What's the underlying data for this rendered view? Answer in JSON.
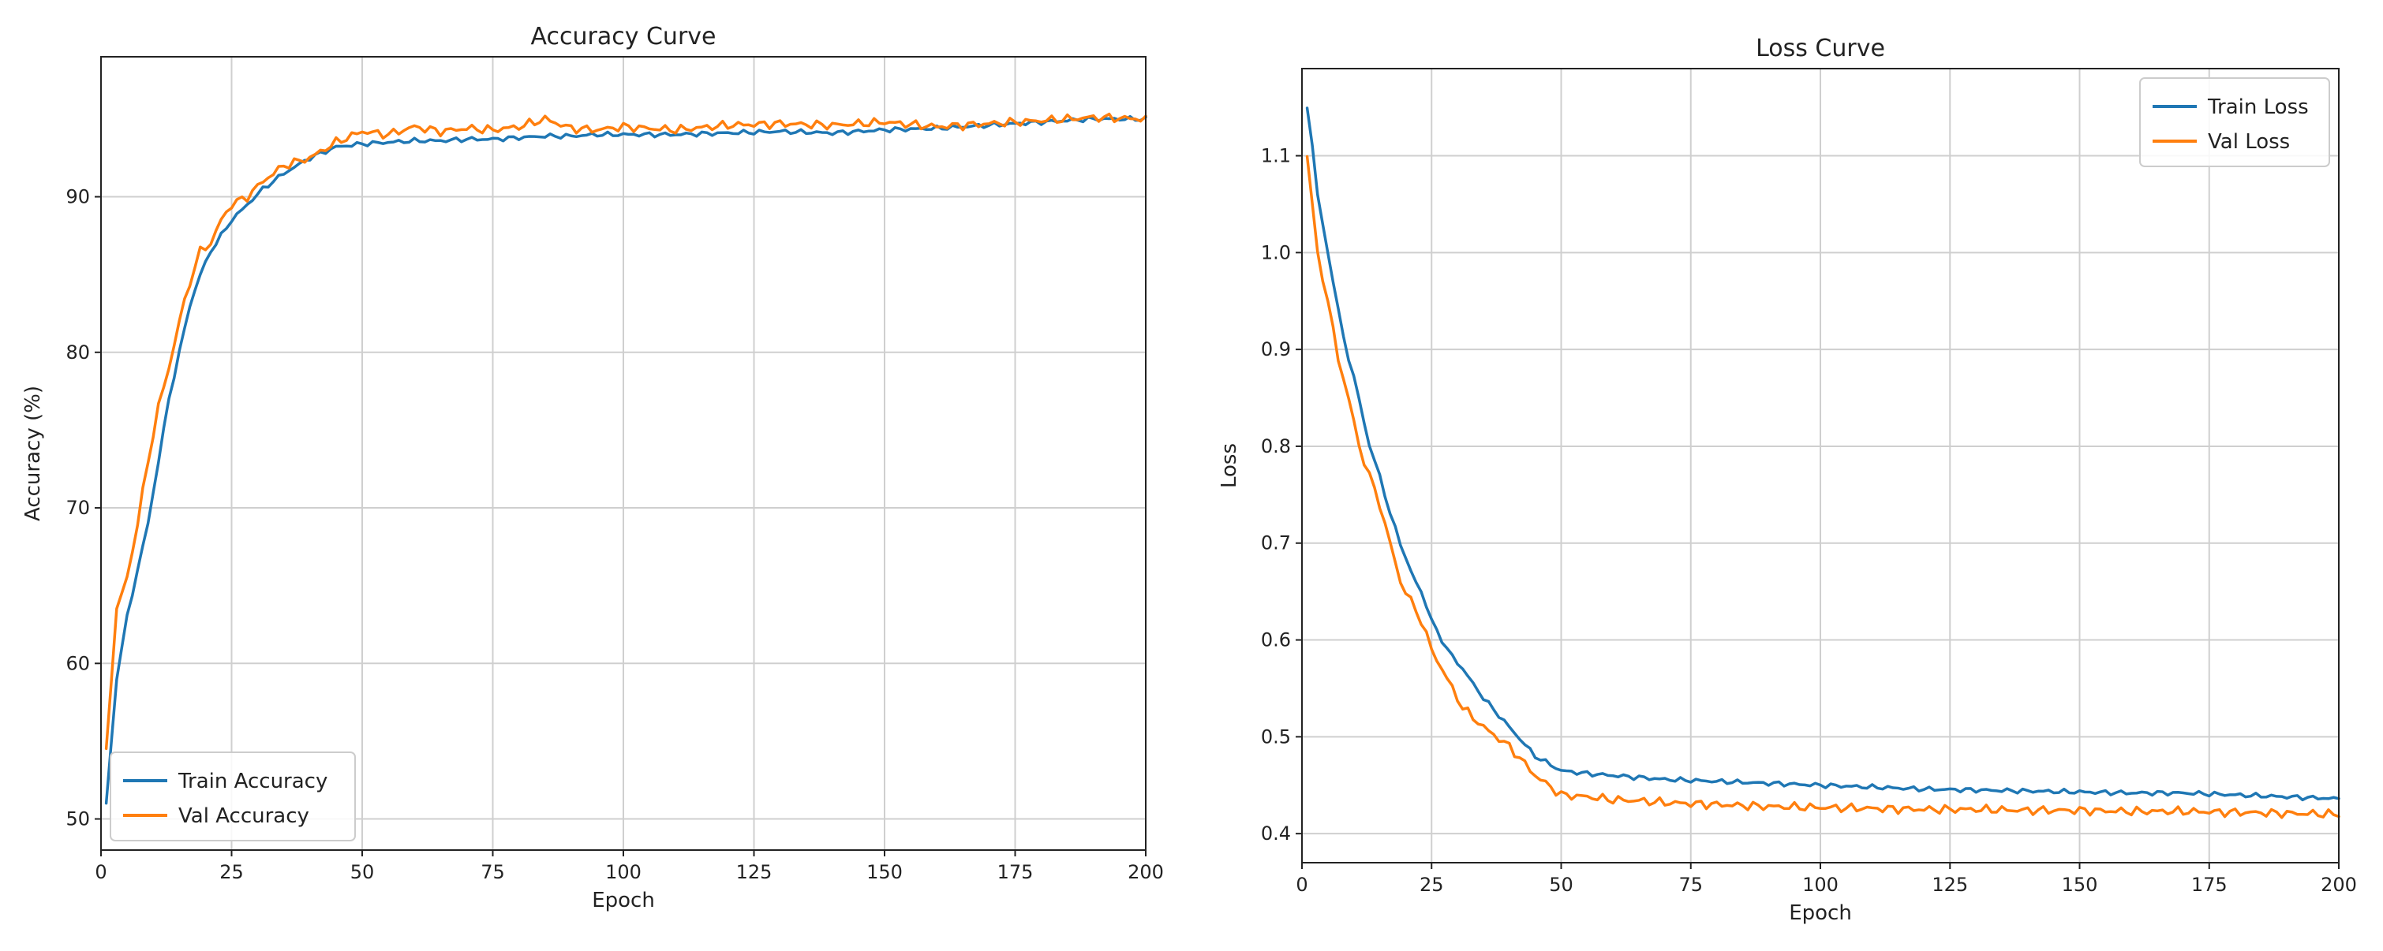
{
  "chart_data": [
    {
      "type": "line",
      "title": "Accuracy Curve",
      "xlabel": "Epoch",
      "ylabel": "Accuracy (%)",
      "xlim": [
        0,
        200
      ],
      "ylim": [
        48,
        99
      ],
      "xticks": [
        0,
        25,
        50,
        75,
        100,
        125,
        150,
        175,
        200
      ],
      "yticks": [
        50,
        60,
        70,
        80,
        90
      ],
      "grid": true,
      "legend_position": "lower-left",
      "series": [
        {
          "name": "Train Accuracy",
          "color": "#1f77b4",
          "points": [
            [
              1,
              51
            ],
            [
              2,
              55
            ],
            [
              3,
              59
            ],
            [
              5,
              63
            ],
            [
              7,
              66
            ],
            [
              9,
              69
            ],
            [
              11,
              73
            ],
            [
              13,
              77
            ],
            [
              15,
              80
            ],
            [
              17,
              83
            ],
            [
              19,
              85
            ],
            [
              21,
              86.5
            ],
            [
              23,
              87.5
            ],
            [
              25,
              88.5
            ],
            [
              28,
              89.5
            ],
            [
              31,
              90.5
            ],
            [
              35,
              91.5
            ],
            [
              40,
              92.5
            ],
            [
              45,
              93.2
            ],
            [
              50,
              93.4
            ],
            [
              55,
              93.5
            ],
            [
              60,
              93.6
            ],
            [
              65,
              93.6
            ],
            [
              70,
              93.7
            ],
            [
              75,
              93.7
            ],
            [
              80,
              93.8
            ],
            [
              85,
              93.9
            ],
            [
              90,
              93.9
            ],
            [
              95,
              94
            ],
            [
              100,
              94
            ],
            [
              110,
              94
            ],
            [
              120,
              94.1
            ],
            [
              130,
              94.2
            ],
            [
              140,
              94.1
            ],
            [
              150,
              94.3
            ],
            [
              160,
              94.4
            ],
            [
              170,
              94.6
            ],
            [
              180,
              94.8
            ],
            [
              190,
              95
            ],
            [
              200,
              95
            ]
          ]
        },
        {
          "name": "Val Accuracy",
          "color": "#ff7f0e",
          "points": [
            [
              1,
              54.5
            ],
            [
              2,
              59
            ],
            [
              3,
              63.5
            ],
            [
              5,
              65.5
            ],
            [
              7,
              69
            ],
            [
              9,
              73
            ],
            [
              11,
              76.5
            ],
            [
              13,
              79
            ],
            [
              15,
              82
            ],
            [
              17,
              84.5
            ],
            [
              19,
              86.5
            ],
            [
              21,
              87
            ],
            [
              23,
              88.5
            ],
            [
              25,
              89.5
            ],
            [
              28,
              90
            ],
            [
              31,
              91
            ],
            [
              35,
              92
            ],
            [
              40,
              92.5
            ],
            [
              45,
              93.5
            ],
            [
              50,
              94.2
            ],
            [
              55,
              94
            ],
            [
              60,
              94.5
            ],
            [
              65,
              94.2
            ],
            [
              70,
              94.4
            ],
            [
              75,
              94.3
            ],
            [
              80,
              94.5
            ],
            [
              85,
              95
            ],
            [
              90,
              94.4
            ],
            [
              95,
              94.3
            ],
            [
              100,
              94.5
            ],
            [
              110,
              94.3
            ],
            [
              120,
              94.6
            ],
            [
              130,
              94.7
            ],
            [
              140,
              94.6
            ],
            [
              150,
              94.8
            ],
            [
              160,
              94.5
            ],
            [
              170,
              94.7
            ],
            [
              180,
              94.9
            ],
            [
              190,
              95.1
            ],
            [
              200,
              95
            ]
          ]
        }
      ]
    },
    {
      "type": "line",
      "title": "Loss Curve",
      "xlabel": "Epoch",
      "ylabel": "Loss",
      "xlim": [
        0,
        200
      ],
      "ylim": [
        0.37,
        1.19
      ],
      "xticks": [
        0,
        25,
        50,
        75,
        100,
        125,
        150,
        175,
        200
      ],
      "yticks": [
        0.4,
        0.5,
        0.6,
        0.7,
        0.8,
        0.9,
        1.0,
        1.1
      ],
      "grid": true,
      "legend_position": "upper-right",
      "series": [
        {
          "name": "Train Loss",
          "color": "#1f77b4",
          "points": [
            [
              1,
              1.15
            ],
            [
              2,
              1.11
            ],
            [
              3,
              1.06
            ],
            [
              5,
              1.0
            ],
            [
              7,
              0.94
            ],
            [
              9,
              0.89
            ],
            [
              11,
              0.85
            ],
            [
              13,
              0.8
            ],
            [
              15,
              0.77
            ],
            [
              17,
              0.73
            ],
            [
              19,
              0.7
            ],
            [
              21,
              0.67
            ],
            [
              23,
              0.65
            ],
            [
              25,
              0.62
            ],
            [
              28,
              0.59
            ],
            [
              31,
              0.57
            ],
            [
              35,
              0.54
            ],
            [
              40,
              0.51
            ],
            [
              45,
              0.48
            ],
            [
              50,
              0.465
            ],
            [
              55,
              0.462
            ],
            [
              60,
              0.46
            ],
            [
              65,
              0.458
            ],
            [
              70,
              0.456
            ],
            [
              75,
              0.455
            ],
            [
              80,
              0.454
            ],
            [
              90,
              0.452
            ],
            [
              100,
              0.45
            ],
            [
              110,
              0.448
            ],
            [
              120,
              0.446
            ],
            [
              130,
              0.445
            ],
            [
              140,
              0.444
            ],
            [
              150,
              0.443
            ],
            [
              160,
              0.442
            ],
            [
              170,
              0.442
            ],
            [
              180,
              0.44
            ],
            [
              190,
              0.438
            ],
            [
              200,
              0.436
            ]
          ]
        },
        {
          "name": "Val Loss",
          "color": "#ff7f0e",
          "points": [
            [
              1,
              1.1
            ],
            [
              2,
              1.05
            ],
            [
              3,
              1.0
            ],
            [
              5,
              0.95
            ],
            [
              7,
              0.89
            ],
            [
              9,
              0.85
            ],
            [
              11,
              0.8
            ],
            [
              13,
              0.77
            ],
            [
              15,
              0.74
            ],
            [
              17,
              0.7
            ],
            [
              19,
              0.66
            ],
            [
              21,
              0.64
            ],
            [
              23,
              0.62
            ],
            [
              25,
              0.59
            ],
            [
              28,
              0.56
            ],
            [
              31,
              0.53
            ],
            [
              35,
              0.51
            ],
            [
              40,
              0.49
            ],
            [
              45,
              0.46
            ],
            [
              50,
              0.44
            ],
            [
              55,
              0.438
            ],
            [
              60,
              0.435
            ],
            [
              65,
              0.434
            ],
            [
              70,
              0.432
            ],
            [
              75,
              0.431
            ],
            [
              80,
              0.43
            ],
            [
              90,
              0.428
            ],
            [
              100,
              0.427
            ],
            [
              110,
              0.426
            ],
            [
              120,
              0.425
            ],
            [
              130,
              0.425
            ],
            [
              140,
              0.424
            ],
            [
              150,
              0.424
            ],
            [
              160,
              0.423
            ],
            [
              170,
              0.423
            ],
            [
              180,
              0.422
            ],
            [
              190,
              0.421
            ],
            [
              200,
              0.42
            ]
          ]
        }
      ]
    }
  ]
}
